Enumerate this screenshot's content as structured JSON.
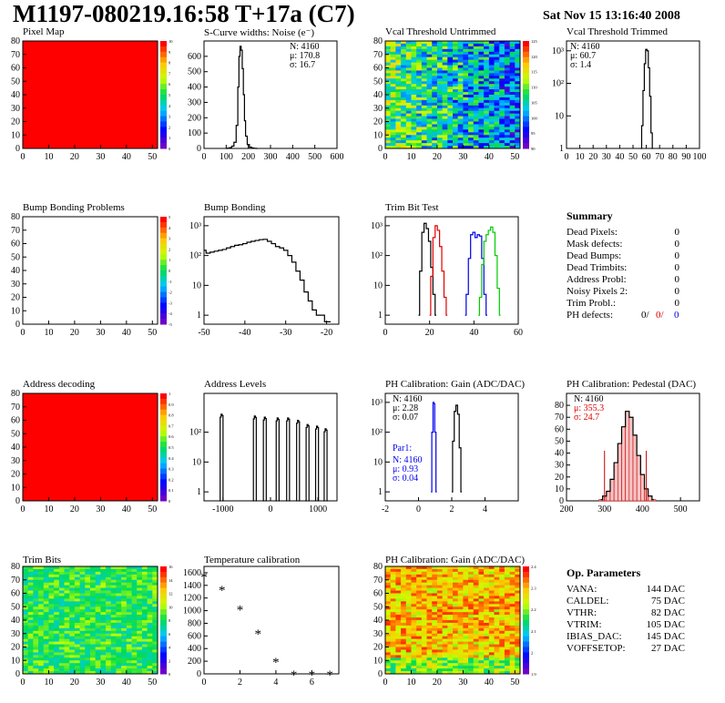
{
  "header": {
    "title": "M1197-080219.16:58 T+17a (C7)",
    "date": "Sat Nov 15 13:16:40 2008"
  },
  "panels": {
    "pixel_map": {
      "title": "Pixel Map",
      "chart_data": {
        "type": "heatmap",
        "fill": "uniform",
        "fill_color": "#ff0000",
        "xlim": [
          0,
          52
        ],
        "ylim": [
          0,
          80
        ],
        "xticks": [
          0,
          10,
          20,
          30,
          40,
          50
        ],
        "yticks": [
          0,
          10,
          20,
          30,
          40,
          50,
          60,
          70,
          80
        ],
        "palette_labels": [
          "10",
          "9",
          "8",
          "7",
          "6",
          "5",
          "4",
          "3",
          "2",
          "1",
          "0"
        ]
      }
    },
    "scurve": {
      "title": "S-Curve widths: Noise (e⁻)",
      "stats": [
        "N: 4160",
        "μ: 170.8",
        "σ: 16.7"
      ],
      "chart_data": {
        "type": "line",
        "xlim": [
          0,
          600
        ],
        "ylim": [
          0,
          700
        ],
        "xticks": [
          0,
          100,
          200,
          300,
          400,
          500,
          600
        ],
        "yticks": [
          0,
          100,
          200,
          300,
          400,
          500,
          600
        ],
        "x": [
          100,
          110,
          120,
          130,
          140,
          150,
          155,
          160,
          165,
          170,
          175,
          180,
          185,
          190,
          200,
          210,
          220,
          230,
          240
        ],
        "y": [
          0,
          2,
          5,
          15,
          40,
          150,
          400,
          600,
          665,
          640,
          520,
          350,
          180,
          80,
          25,
          8,
          3,
          1,
          0
        ]
      }
    },
    "vcal_untrimmed": {
      "title": "Vcal Threshold Untrimmed",
      "chart_data": {
        "type": "heatmap",
        "xlim": [
          0,
          52
        ],
        "ylim": [
          0,
          80
        ],
        "xticks": [
          0,
          10,
          20,
          30,
          40,
          50
        ],
        "yticks": [
          0,
          10,
          20,
          30,
          40,
          50,
          60,
          70,
          80
        ],
        "palette_labels": [
          "125",
          "120",
          "115",
          "110",
          "105",
          "100",
          "95",
          "90"
        ]
      }
    },
    "vcal_trimmed": {
      "title": "Vcal Threshold Trimmed",
      "stats": [
        "N: 4160",
        "μ: 60.7",
        "σ:  1.4"
      ],
      "chart_data": {
        "type": "line",
        "log_y": true,
        "xlim": [
          0,
          100
        ],
        "ylim": [
          1,
          2000
        ],
        "xticks": [
          0,
          10,
          20,
          30,
          40,
          50,
          60,
          70,
          80,
          90,
          100
        ],
        "ytick_labels": [
          "1",
          "10",
          "10²",
          "10³"
        ],
        "x": [
          56,
          57,
          58,
          59,
          60,
          61,
          62,
          63,
          64,
          65
        ],
        "y": [
          1,
          5,
          60,
          400,
          1100,
          1000,
          300,
          40,
          3,
          1
        ]
      }
    },
    "bump_problems": {
      "title": "Bump Bonding Problems",
      "chart_data": {
        "type": "heatmap",
        "fill": "empty",
        "xlim": [
          0,
          52
        ],
        "ylim": [
          0,
          80
        ],
        "xticks": [
          0,
          10,
          20,
          30,
          40,
          50
        ],
        "yticks": [
          0,
          10,
          20,
          30,
          40,
          50,
          60,
          70,
          80
        ],
        "palette_labels": [
          "5",
          "4",
          "3",
          "2",
          "1",
          "0",
          "-1",
          "-2",
          "-3",
          "-4",
          "-5"
        ]
      }
    },
    "bump_bonding": {
      "title": "Bump Bonding",
      "chart_data": {
        "type": "line",
        "log_y": true,
        "xlim": [
          -50,
          -17
        ],
        "ylim": [
          0.5,
          2000
        ],
        "xticks": [
          -50,
          -40,
          -30,
          -20
        ],
        "ytick_labels": [
          "1",
          "10",
          "10²",
          "10³"
        ],
        "x": [
          -50,
          -49,
          -48,
          -47,
          -46,
          -45,
          -44,
          -43,
          -42,
          -41,
          -40,
          -39,
          -38,
          -37,
          -36,
          -35,
          -34,
          -33,
          -32,
          -31,
          -30,
          -29,
          -28,
          -27,
          -26,
          -25,
          -24,
          -23,
          -22,
          -21,
          -20,
          -19
        ],
        "y": [
          150,
          120,
          130,
          140,
          150,
          160,
          180,
          200,
          220,
          230,
          250,
          280,
          300,
          320,
          340,
          350,
          300,
          250,
          200,
          180,
          150,
          100,
          60,
          30,
          15,
          6,
          3,
          1.5,
          1,
          1,
          0.6,
          0.6
        ]
      }
    },
    "trim_bit_test": {
      "title": "Trim Bit Test",
      "chart_data": {
        "type": "line",
        "log_y": true,
        "xlim": [
          0,
          60
        ],
        "ylim": [
          0.5,
          2000
        ],
        "xticks": [
          0,
          20,
          40,
          60
        ],
        "ytick_labels": [
          "1",
          "10",
          "10²",
          "10³"
        ],
        "series": [
          {
            "color": "#000000",
            "x": [
              15,
              16,
              17,
              18,
              19,
              20,
              21,
              22,
              23
            ],
            "y": [
              1,
              30,
              600,
              1200,
              800,
              300,
              40,
              5,
              1
            ]
          },
          {
            "color": "#dd0000",
            "x": [
              20,
              21,
              22,
              23,
              24,
              25,
              26,
              27,
              28
            ],
            "y": [
              1,
              20,
              400,
              1000,
              700,
              200,
              30,
              4,
              1
            ]
          },
          {
            "color": "#0000ee",
            "x": [
              36,
              37,
              38,
              39,
              40,
              41,
              42,
              43,
              44,
              45,
              46
            ],
            "y": [
              1,
              5,
              80,
              500,
              600,
              400,
              500,
              450,
              80,
              5,
              1
            ]
          },
          {
            "color": "#00cc00",
            "x": [
              42,
              43,
              44,
              45,
              46,
              47,
              48,
              49,
              50,
              51,
              52
            ],
            "y": [
              1,
              4,
              50,
              300,
              500,
              700,
              900,
              600,
              100,
              8,
              1
            ]
          }
        ]
      }
    },
    "summary": {
      "title": "Summary",
      "rows": [
        {
          "label": "Dead Pixels:",
          "value": "0"
        },
        {
          "label": "Mask defects:",
          "value": "0"
        },
        {
          "label": "Dead Bumps:",
          "value": "0"
        },
        {
          "label": "Dead Trimbits:",
          "value": "0"
        },
        {
          "label": "Address Probl:",
          "value": "0"
        },
        {
          "label": "Noisy Pixels 2:",
          "value": "0"
        },
        {
          "label": "Trim Probl.:",
          "value": "0"
        }
      ],
      "ph_defects": {
        "label": "PH defects:",
        "black": "0/",
        "red": "0/",
        "blue": "0"
      }
    },
    "address_decoding": {
      "title": "Address decoding",
      "chart_data": {
        "type": "heatmap",
        "fill": "uniform",
        "fill_color": "#ff0000",
        "xlim": [
          0,
          52
        ],
        "ylim": [
          0,
          80
        ],
        "xticks": [
          0,
          10,
          20,
          30,
          40,
          50
        ],
        "yticks": [
          0,
          10,
          20,
          30,
          40,
          50,
          60,
          70,
          80
        ],
        "palette_labels": [
          "1",
          "0.9",
          "0.8",
          "0.7",
          "0.6",
          "0.5",
          "0.4",
          "0.3",
          "0.2",
          "0.1",
          "0"
        ]
      }
    },
    "address_levels": {
      "title": "Address Levels",
      "chart_data": {
        "type": "line",
        "log_y": true,
        "xlim": [
          -1400,
          1400
        ],
        "ylim": [
          0.5,
          2000
        ],
        "xticks": [
          -1000,
          0,
          1000
        ],
        "ytick_labels": [
          "1",
          "10",
          "10²"
        ],
        "peaks": [
          -1030,
          -330,
          -120,
          150,
          370,
          580,
          780,
          980,
          1160
        ],
        "peak_heights": [
          400,
          350,
          320,
          300,
          300,
          250,
          180,
          160,
          130
        ]
      }
    },
    "ph_gain": {
      "title": "PH Calibration: Gain (ADC/DAC)",
      "stats": [
        "N: 4160",
        "μ: 2.28",
        "σ: 0.07"
      ],
      "par1_title": "Par1:",
      "par1_stats": [
        "N: 4160",
        "μ: 0.93",
        "σ: 0.04"
      ],
      "chart_data": {
        "type": "line",
        "log_y": true,
        "xlim": [
          -2,
          6
        ],
        "ylim": [
          0.5,
          2000
        ],
        "xticks": [
          -2,
          0,
          2,
          4
        ],
        "ytick_labels": [
          "1",
          "10",
          "10²",
          "10³"
        ],
        "series": [
          {
            "color": "#000000",
            "x": [
              2.0,
              2.1,
              2.2,
              2.3,
              2.4,
              2.5,
              2.6
            ],
            "y": [
              1,
              50,
              500,
              800,
              400,
              30,
              1
            ]
          },
          {
            "color": "#0000ee",
            "x": [
              0.75,
              0.85,
              0.9,
              0.95,
              1.0,
              1.1
            ],
            "y": [
              1,
              100,
              1000,
              900,
              100,
              1
            ]
          }
        ]
      }
    },
    "ph_pedestal": {
      "title": "PH Calibration: Pedestal (DAC)",
      "stats": [
        "N: 4160",
        "μ: 355.3",
        "σ: 24.7"
      ],
      "chart_data": {
        "type": "bar",
        "xlim": [
          200,
          550
        ],
        "ylim": [
          0,
          90
        ],
        "xticks": [
          200,
          300,
          400,
          500
        ],
        "yticks": [
          0,
          10,
          20,
          30,
          40,
          50,
          60,
          70,
          80
        ],
        "x": [
          290,
          300,
          310,
          320,
          330,
          340,
          350,
          360,
          370,
          380,
          390,
          400,
          410,
          420,
          430
        ],
        "y": [
          1,
          4,
          8,
          18,
          32,
          48,
          62,
          75,
          70,
          55,
          38,
          22,
          10,
          4,
          1
        ]
      }
    },
    "trim_bits": {
      "title": "Trim Bits",
      "chart_data": {
        "type": "heatmap",
        "xlim": [
          0,
          52
        ],
        "ylim": [
          0,
          80
        ],
        "xticks": [
          0,
          10,
          20,
          30,
          40,
          50
        ],
        "yticks": [
          0,
          10,
          20,
          30,
          40,
          50,
          60,
          70,
          80
        ],
        "palette_labels": [
          "16",
          "14",
          "12",
          "10",
          "8",
          "6",
          "4",
          "2",
          "0"
        ]
      }
    },
    "temperature": {
      "title": "Temperature calibration",
      "chart_data": {
        "type": "scatter",
        "xlim": [
          0,
          7.5
        ],
        "ylim": [
          0,
          1700
        ],
        "xticks": [
          0,
          2,
          4,
          6
        ],
        "yticks": [
          0,
          200,
          400,
          600,
          800,
          1000,
          1200,
          1400,
          1600
        ],
        "x": [
          0,
          1,
          2,
          3,
          4,
          5,
          6,
          7
        ],
        "y": [
          1550,
          1340,
          1030,
          650,
          200,
          0,
          0,
          0
        ]
      }
    },
    "ph_gain_map": {
      "title": "PH Calibration: Gain (ADC/DAC)",
      "chart_data": {
        "type": "heatmap",
        "xlim": [
          0,
          52
        ],
        "ylim": [
          0,
          80
        ],
        "xticks": [
          0,
          10,
          20,
          30,
          40,
          50
        ],
        "yticks": [
          0,
          10,
          20,
          30,
          40,
          50,
          60,
          70,
          80
        ],
        "palette_labels": [
          "2.4",
          "2.3",
          "2.2",
          "2.1",
          "2",
          "1.9"
        ]
      }
    },
    "op_params": {
      "title": "Op. Parameters",
      "rows": [
        {
          "label": "VANA:",
          "value": "144 DAC"
        },
        {
          "label": "CALDEL:",
          "value": "75 DAC"
        },
        {
          "label": "VTHR:",
          "value": "82 DAC"
        },
        {
          "label": "VTRIM:",
          "value": "105 DAC"
        },
        {
          "label": "IBIAS_DAC:",
          "value": "145 DAC"
        },
        {
          "label": "VOFFSETOP:",
          "value": "27 DAC"
        }
      ]
    }
  }
}
